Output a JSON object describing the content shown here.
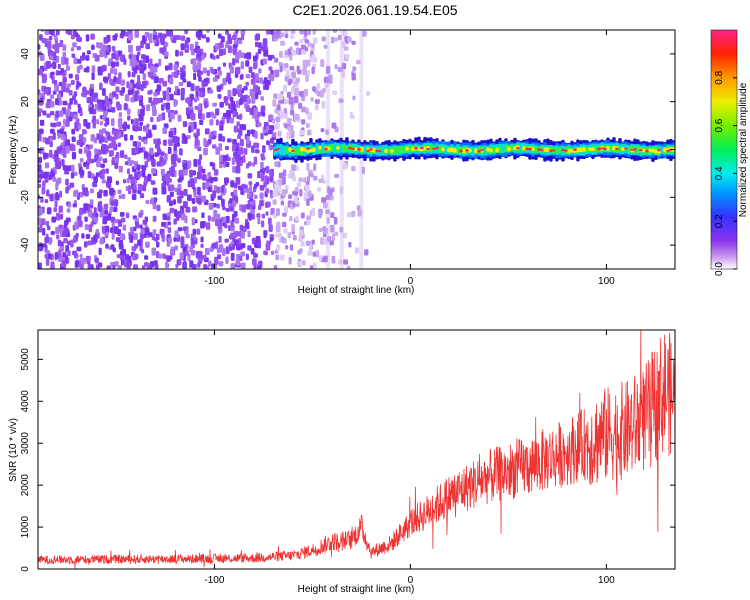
{
  "title": "C2E1.2026.061.19.54.E05",
  "colors": {
    "snr_line": "#ee3333",
    "noise_purple": "#7733ee",
    "band_core": "#ff2255"
  },
  "chart_data": [
    {
      "type": "heatmap",
      "name": "spectrogram",
      "xlabel": "Height of straight line (km)",
      "ylabel": "Frequency (Hz)",
      "xlim": [
        -190,
        135
      ],
      "ylim": [
        -50,
        50
      ],
      "xticks": [
        "-100",
        "0",
        "100"
      ],
      "xtick_values": [
        -100,
        0,
        100
      ],
      "yticks": [
        "-40",
        "-20",
        "0",
        "20",
        "40"
      ],
      "ytick_values": [
        -40,
        -20,
        0,
        20,
        40
      ],
      "colorbar": {
        "label": "Normalized spectral amplitude",
        "range": [
          0.0,
          1.0
        ],
        "ticks": [
          "0.0",
          "0.2",
          "0.4",
          "0.6",
          "0.8"
        ],
        "tick_values": [
          0.0,
          0.2,
          0.4,
          0.6,
          0.8
        ]
      },
      "grid": false,
      "features": {
        "noise_region_x": [
          -190,
          -70
        ],
        "noise_fade_x": [
          -70,
          -20
        ],
        "signal_band_start_x": -70,
        "signal_band_center_freq": 0,
        "signal_band_halfwidth_freq": 4
      }
    },
    {
      "type": "line",
      "name": "snr",
      "xlabel": "Height of straight line (km)",
      "ylabel": "SNR (10 * v/v)",
      "xlim": [
        -190,
        135
      ],
      "ylim": [
        0,
        5700
      ],
      "xticks": [
        "-100",
        "0",
        "100"
      ],
      "xtick_values": [
        -100,
        0,
        100
      ],
      "yticks": [
        "0",
        "1000",
        "2000",
        "3000",
        "4000",
        "5000"
      ],
      "ytick_values": [
        0,
        1000,
        2000,
        3000,
        4000,
        5000
      ],
      "grid": false,
      "series": [
        {
          "trend_x": [
            -190,
            -120,
            -80,
            -60,
            -50,
            -40,
            -30,
            -25,
            -20,
            -10,
            0,
            10,
            20,
            40,
            60,
            80,
            100,
            110,
            120,
            130,
            135
          ],
          "trend_y": [
            220,
            240,
            260,
            320,
            450,
            650,
            700,
            1000,
            400,
            600,
            1100,
            1400,
            1750,
            2200,
            2450,
            2800,
            3200,
            3300,
            3600,
            4300,
            4000
          ]
        }
      ]
    }
  ]
}
